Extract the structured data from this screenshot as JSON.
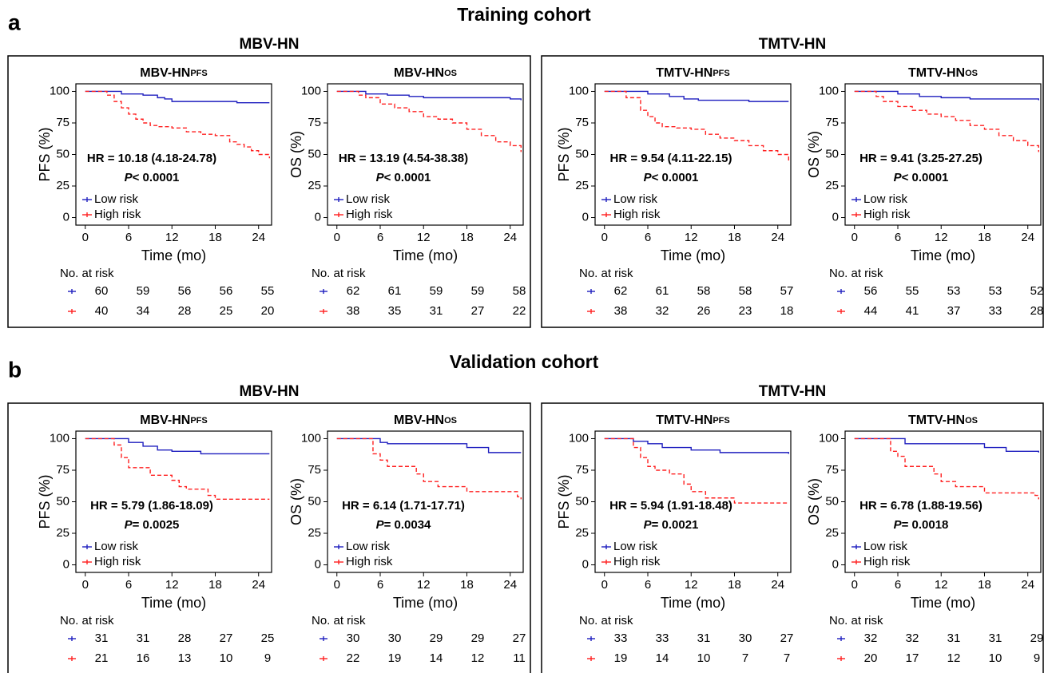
{
  "panels": [
    {
      "label": "a",
      "title": "Training cohort",
      "groups": [
        "MBV-HN",
        "TMTV-HN"
      ]
    },
    {
      "label": "b",
      "title": "Validation cohort",
      "groups": [
        "MBV-HN",
        "TMTV-HN"
      ]
    }
  ],
  "chart_data": [
    {
      "type": "line",
      "step": true,
      "title": "MBV-HN",
      "title_sub": "PFS",
      "ylabel": "PFS (%)",
      "xlabel": "Time (mo)",
      "xlim": [
        -1.3,
        25.8
      ],
      "ylim": [
        -6,
        106
      ],
      "xticks": [
        0,
        6,
        12,
        18,
        24
      ],
      "yticks": [
        0,
        25,
        50,
        75,
        100
      ],
      "hr": "HR = 10.18 (4.18-24.78)",
      "p_symbol": "P",
      "p_value": "< 0.0001",
      "risk_title": "No. at risk",
      "series": [
        {
          "name": "Low risk",
          "color": "#1f1fbf",
          "x": [
            0,
            5,
            8,
            10,
            11,
            12,
            21,
            25.5
          ],
          "values": [
            100,
            98,
            97,
            95,
            94,
            92,
            91,
            91
          ],
          "at_risk": [
            60,
            59,
            56,
            56,
            55
          ]
        },
        {
          "name": "High risk",
          "color": "#ff2020",
          "x": [
            0,
            3,
            4,
            5,
            6,
            7,
            8,
            9,
            10,
            12,
            14,
            16,
            18,
            20,
            21,
            22,
            23,
            24,
            25.5
          ],
          "values": [
            100,
            97,
            92,
            87,
            82,
            78,
            75,
            73,
            72,
            71,
            68,
            66,
            65,
            60,
            58,
            56,
            53,
            50,
            47
          ],
          "at_risk": [
            40,
            34,
            28,
            25,
            20
          ]
        }
      ]
    },
    {
      "type": "line",
      "step": true,
      "title": "MBV-HN",
      "title_sub": "OS",
      "ylabel": "OS (%)",
      "xlabel": "Time (mo)",
      "xlim": [
        -1.3,
        25.8
      ],
      "ylim": [
        -6,
        106
      ],
      "xticks": [
        0,
        6,
        12,
        18,
        24
      ],
      "yticks": [
        0,
        25,
        50,
        75,
        100
      ],
      "hr": "HR = 13.19 (4.54-38.38)",
      "p_symbol": "P",
      "p_value": "< 0.0001",
      "risk_title": "No. at risk",
      "series": [
        {
          "name": "Low risk",
          "color": "#1f1fbf",
          "x": [
            0,
            4,
            7,
            10,
            12,
            24,
            25.5
          ],
          "values": [
            100,
            98,
            97,
            96,
            95,
            94,
            93
          ],
          "at_risk": [
            62,
            61,
            59,
            59,
            58
          ]
        },
        {
          "name": "High risk",
          "color": "#ff2020",
          "x": [
            0,
            3,
            4,
            6,
            8,
            10,
            12,
            14,
            16,
            18,
            20,
            22,
            24,
            25.5
          ],
          "values": [
            100,
            97,
            95,
            90,
            87,
            84,
            80,
            78,
            75,
            70,
            65,
            60,
            57,
            52
          ],
          "at_risk": [
            38,
            35,
            31,
            27,
            22
          ]
        }
      ]
    },
    {
      "type": "line",
      "step": true,
      "title": "TMTV-HN",
      "title_sub": "PFS",
      "ylabel": "PFS (%)",
      "xlabel": "Time (mo)",
      "xlim": [
        -1.3,
        25.8
      ],
      "ylim": [
        -6,
        106
      ],
      "xticks": [
        0,
        6,
        12,
        18,
        24
      ],
      "yticks": [
        0,
        25,
        50,
        75,
        100
      ],
      "hr": "HR = 9.54 (4.11-22.15)",
      "p_symbol": "P",
      "p_value": "< 0.0001",
      "risk_title": "No. at risk",
      "series": [
        {
          "name": "Low risk",
          "color": "#1f1fbf",
          "x": [
            0,
            6,
            9,
            11,
            13,
            20,
            25.5
          ],
          "values": [
            100,
            98,
            96,
            94,
            93,
            92,
            92
          ],
          "at_risk": [
            62,
            61,
            58,
            58,
            57
          ]
        },
        {
          "name": "High risk",
          "color": "#ff2020",
          "x": [
            0,
            3,
            5,
            6,
            7,
            8,
            10,
            12,
            14,
            16,
            18,
            20,
            22,
            24,
            25.5
          ],
          "values": [
            100,
            95,
            85,
            80,
            75,
            72,
            71,
            70,
            66,
            63,
            61,
            57,
            53,
            50,
            45
          ],
          "at_risk": [
            38,
            32,
            26,
            23,
            18
          ]
        }
      ]
    },
    {
      "type": "line",
      "step": true,
      "title": "TMTV-HN",
      "title_sub": "OS",
      "ylabel": "OS (%)",
      "xlabel": "Time (mo)",
      "xlim": [
        -1.3,
        25.8
      ],
      "ylim": [
        -6,
        106
      ],
      "xticks": [
        0,
        6,
        12,
        18,
        24
      ],
      "yticks": [
        0,
        25,
        50,
        75,
        100
      ],
      "hr": "HR = 9.41 (3.25-27.25)",
      "p_symbol": "P",
      "p_value": "< 0.0001",
      "risk_title": "No. at risk",
      "series": [
        {
          "name": "Low risk",
          "color": "#1f1fbf",
          "x": [
            0,
            6,
            9,
            12,
            16,
            25.5
          ],
          "values": [
            100,
            98,
            96,
            95,
            94,
            93
          ],
          "at_risk": [
            56,
            55,
            53,
            53,
            52
          ]
        },
        {
          "name": "High risk",
          "color": "#ff2020",
          "x": [
            0,
            3,
            4,
            6,
            8,
            10,
            12,
            14,
            16,
            18,
            20,
            22,
            24,
            25.5
          ],
          "values": [
            100,
            96,
            92,
            88,
            85,
            82,
            80,
            77,
            73,
            70,
            65,
            61,
            57,
            52
          ],
          "at_risk": [
            44,
            41,
            37,
            33,
            28
          ]
        }
      ]
    },
    {
      "type": "line",
      "step": true,
      "title": "MBV-HN",
      "title_sub": "PFS",
      "ylabel": "PFS (%)",
      "xlabel": "Time (mo)",
      "xlim": [
        -1.3,
        25.8
      ],
      "ylim": [
        -6,
        106
      ],
      "xticks": [
        0,
        6,
        12,
        18,
        24
      ],
      "yticks": [
        0,
        25,
        50,
        75,
        100
      ],
      "hr": "HR = 5.79 (1.86-18.09)",
      "p_symbol": "P",
      "p_value": "= 0.0025",
      "risk_title": "No. at risk",
      "series": [
        {
          "name": "Low risk",
          "color": "#1f1fbf",
          "x": [
            0,
            6,
            8,
            10,
            12,
            16,
            25.5
          ],
          "values": [
            100,
            97,
            94,
            91,
            90,
            88,
            88
          ],
          "at_risk": [
            31,
            31,
            28,
            27,
            25
          ]
        },
        {
          "name": "High risk",
          "color": "#ff2020",
          "x": [
            0,
            4,
            5,
            6,
            9,
            12,
            13,
            14,
            17,
            18,
            25.5
          ],
          "values": [
            100,
            95,
            85,
            77,
            71,
            67,
            62,
            60,
            55,
            52,
            52
          ],
          "at_risk": [
            21,
            16,
            13,
            10,
            9
          ]
        }
      ]
    },
    {
      "type": "line",
      "step": true,
      "title": "MBV-HN",
      "title_sub": "OS",
      "ylabel": "OS (%)",
      "xlabel": "Time (mo)",
      "xlim": [
        -1.3,
        25.8
      ],
      "ylim": [
        -6,
        106
      ],
      "xticks": [
        0,
        6,
        12,
        18,
        24
      ],
      "yticks": [
        0,
        25,
        50,
        75,
        100
      ],
      "hr": "HR = 6.14 (1.71-17.71)",
      "p_symbol": "P",
      "p_value": "= 0.0034",
      "risk_title": "No. at risk",
      "series": [
        {
          "name": "Low risk",
          "color": "#1f1fbf",
          "x": [
            0,
            6,
            7,
            18,
            21,
            25.5
          ],
          "values": [
            100,
            97,
            96,
            93,
            89,
            89
          ],
          "at_risk": [
            30,
            30,
            29,
            29,
            27
          ]
        },
        {
          "name": "High risk",
          "color": "#ff2020",
          "x": [
            0,
            5,
            6,
            7,
            11,
            12,
            14,
            18,
            25,
            25.5
          ],
          "values": [
            100,
            88,
            83,
            78,
            72,
            66,
            62,
            58,
            54,
            52
          ],
          "at_risk": [
            22,
            19,
            14,
            12,
            11
          ]
        }
      ]
    },
    {
      "type": "line",
      "step": true,
      "title": "TMTV-HN",
      "title_sub": "PFS",
      "ylabel": "PFS (%)",
      "xlabel": "Time (mo)",
      "xlim": [
        -1.3,
        25.8
      ],
      "ylim": [
        -6,
        106
      ],
      "xticks": [
        0,
        6,
        12,
        18,
        24
      ],
      "yticks": [
        0,
        25,
        50,
        75,
        100
      ],
      "hr": "HR = 5.94 (1.91-18.48)",
      "p_symbol": "P",
      "p_value": "= 0.0021",
      "risk_title": "No. at risk",
      "series": [
        {
          "name": "Low risk",
          "color": "#1f1fbf",
          "x": [
            0,
            4,
            6,
            8,
            12,
            16,
            25.5
          ],
          "values": [
            100,
            98,
            96,
            93,
            91,
            89,
            88
          ],
          "at_risk": [
            33,
            33,
            31,
            30,
            27
          ]
        },
        {
          "name": "High risk",
          "color": "#ff2020",
          "x": [
            0,
            4,
            5,
            6,
            7,
            9,
            11,
            12,
            14,
            18,
            25.5
          ],
          "values": [
            100,
            93,
            85,
            78,
            75,
            72,
            64,
            58,
            53,
            49,
            49
          ],
          "at_risk": [
            19,
            14,
            10,
            7,
            7
          ]
        }
      ]
    },
    {
      "type": "line",
      "step": true,
      "title": "TMTV-HN",
      "title_sub": "OS",
      "ylabel": "OS (%)",
      "xlabel": "Time (mo)",
      "xlim": [
        -1.3,
        25.8
      ],
      "ylim": [
        -6,
        106
      ],
      "xticks": [
        0,
        6,
        12,
        18,
        24
      ],
      "yticks": [
        0,
        25,
        50,
        75,
        100
      ],
      "hr": "HR = 6.78 (1.88-19.56)",
      "p_symbol": "P",
      "p_value": "= 0.0018",
      "risk_title": "No. at risk",
      "series": [
        {
          "name": "Low risk",
          "color": "#1f1fbf",
          "x": [
            0,
            7,
            18,
            21,
            25.5
          ],
          "values": [
            100,
            96,
            93,
            90,
            89
          ],
          "at_risk": [
            32,
            32,
            31,
            31,
            29
          ]
        },
        {
          "name": "High risk",
          "color": "#ff2020",
          "x": [
            0,
            5,
            6,
            7,
            11,
            12,
            14,
            18,
            25,
            25.5
          ],
          "values": [
            100,
            90,
            86,
            78,
            72,
            66,
            62,
            57,
            55,
            52
          ],
          "at_risk": [
            20,
            17,
            12,
            10,
            9
          ]
        }
      ]
    }
  ]
}
